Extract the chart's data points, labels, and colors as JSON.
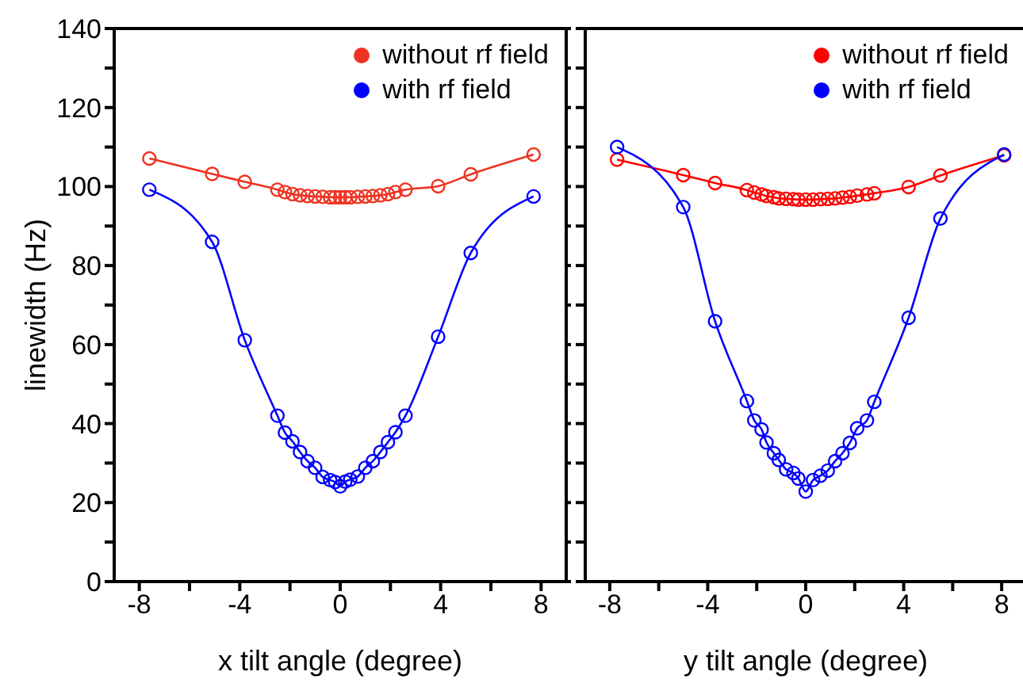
{
  "chart_data": [
    {
      "type": "line",
      "xlabel": "x tilt angle (degree)",
      "ylabel": "linewidth (Hz)",
      "legend": "top right",
      "marker": "circle",
      "grid": false,
      "x": [
        -7.6,
        -5.1,
        -3.8,
        -2.5,
        -2.2,
        -1.9,
        -1.6,
        -1.3,
        -1.0,
        -0.7,
        -0.4,
        -0.2,
        0,
        0.2,
        0.4,
        0.7,
        1.0,
        1.3,
        1.6,
        1.9,
        2.2,
        2.6,
        3.9,
        5.2,
        7.7
      ],
      "series": [
        {
          "name": "without rf field",
          "color": "#ee3322",
          "values": [
            107.1,
            103.2,
            101.2,
            99.2,
            98.6,
            98.1,
            97.8,
            97.6,
            97.5,
            97.4,
            97.3,
            97.3,
            97.3,
            97.3,
            97.3,
            97.4,
            97.5,
            97.6,
            97.8,
            98.1,
            98.6,
            99.2,
            100.1,
            103.1,
            108.1
          ]
        },
        {
          "name": "with rf field",
          "color": "#0000ff",
          "values": [
            99.2,
            86,
            61.1,
            42,
            37.7,
            35.5,
            32.8,
            30.5,
            28.8,
            26.5,
            25.7,
            25.2,
            24.1,
            25.3,
            25.8,
            26.6,
            28.8,
            30.5,
            32.8,
            35.3,
            37.8,
            42,
            62,
            83.2,
            97.5
          ]
        }
      ],
      "xlim": [
        -9,
        9
      ],
      "xticks": [
        -8,
        {
          "value": -6,
          "label": null
        },
        -4,
        {
          "value": -2,
          "label": null
        },
        0,
        {
          "value": 2,
          "label": null
        },
        4,
        {
          "value": 6,
          "label": null
        },
        8
      ],
      "ylim": [
        0,
        140
      ],
      "yticks": [
        0,
        {
          "value": 10,
          "label": null
        },
        20,
        {
          "value": 30,
          "label": null
        },
        40,
        {
          "value": 50,
          "label": null
        },
        60,
        {
          "value": 70,
          "label": null
        },
        80,
        {
          "value": 90,
          "label": null
        },
        100,
        {
          "value": 110,
          "label": null
        },
        120,
        {
          "value": 130,
          "label": null
        },
        140
      ]
    },
    {
      "type": "line",
      "xlabel": "y tilt angle (degree)",
      "legend": "top right",
      "marker": "circle",
      "grid": false,
      "tick_labels": "x",
      "x": [
        -7.7,
        -5.0,
        -3.7,
        -2.4,
        -2.1,
        -1.8,
        -1.6,
        -1.3,
        -1.1,
        -0.8,
        -0.5,
        -0.3,
        0,
        0.3,
        0.6,
        0.9,
        1.2,
        1.5,
        1.8,
        2.1,
        2.5,
        2.8,
        4.2,
        5.5,
        8.1
      ],
      "series": [
        {
          "name": "without rf field",
          "color": "#ff0000",
          "values": [
            106.8,
            102.9,
            100.9,
            99.1,
            98.5,
            98.0,
            97.6,
            97.3,
            97.0,
            96.9,
            96.8,
            96.7,
            96.7,
            96.7,
            96.8,
            96.9,
            97.0,
            97.2,
            97.4,
            97.7,
            98.0,
            98.3,
            99.9,
            102.8,
            107.9
          ]
        },
        {
          "name": "with rf field",
          "color": "#0000ff",
          "values": [
            110,
            94.8,
            65.9,
            45.7,
            40.8,
            38.5,
            35.2,
            32.5,
            30.8,
            28.4,
            27.5,
            26.1,
            22.8,
            25.7,
            26.8,
            28.1,
            30.5,
            32.5,
            35.1,
            38.8,
            40.8,
            45.5,
            66.8,
            91.9,
            108.1
          ]
        }
      ],
      "xlim": [
        -9,
        9
      ],
      "xticks": [
        -8,
        {
          "value": -6,
          "label": null
        },
        -4,
        {
          "value": -2,
          "label": null
        },
        0,
        {
          "value": 2,
          "label": null
        },
        4,
        {
          "value": 6,
          "label": null
        },
        8
      ],
      "ylim": [
        0,
        140
      ],
      "yticks": [
        0,
        {
          "value": 10,
          "label": null
        },
        20,
        {
          "value": 30,
          "label": null
        },
        40,
        {
          "value": 50,
          "label": null
        },
        60,
        {
          "value": 70,
          "label": null
        },
        80,
        {
          "value": 90,
          "label": null
        },
        100,
        {
          "value": 110,
          "label": null
        },
        120,
        {
          "value": 130,
          "label": null
        },
        140
      ]
    }
  ]
}
